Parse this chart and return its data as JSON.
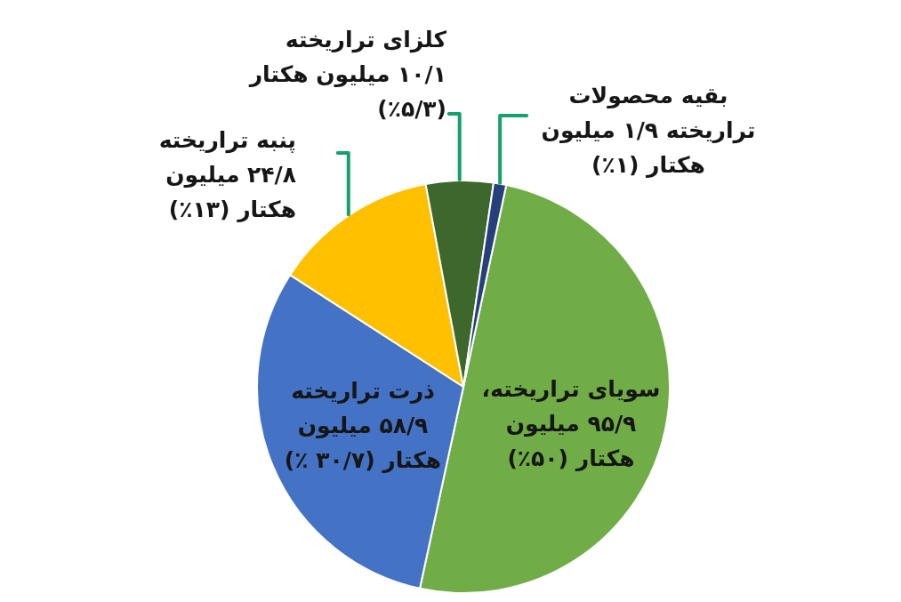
{
  "chart_data": {
    "type": "pie",
    "categories": [
      "سویای تراریخته،",
      "ذرت تراریخته",
      "پنبه تراریخته",
      "کلزای تراریخته",
      "بقیه محصولات تراریخته"
    ],
    "values": [
      95.9,
      58.9,
      24.8,
      10.1,
      1.9
    ],
    "colors": [
      "#70ad47",
      "#4472c4",
      "#ffc000",
      "#3d672b",
      "#27407c"
    ],
    "value_labels": [
      "۹۵/۹ میلیون هکتار (۵۰٪)",
      "۵۸/۹ میلیون هکتار (۳۰/۷ ٪)",
      "۲۴/۸ میلیون هکتار (۱۳٪)",
      "۱۰/۱ میلیون هکتار (۵/۳٪)",
      "۱/۹ میلیون هکتار (۱٪)"
    ]
  }
}
